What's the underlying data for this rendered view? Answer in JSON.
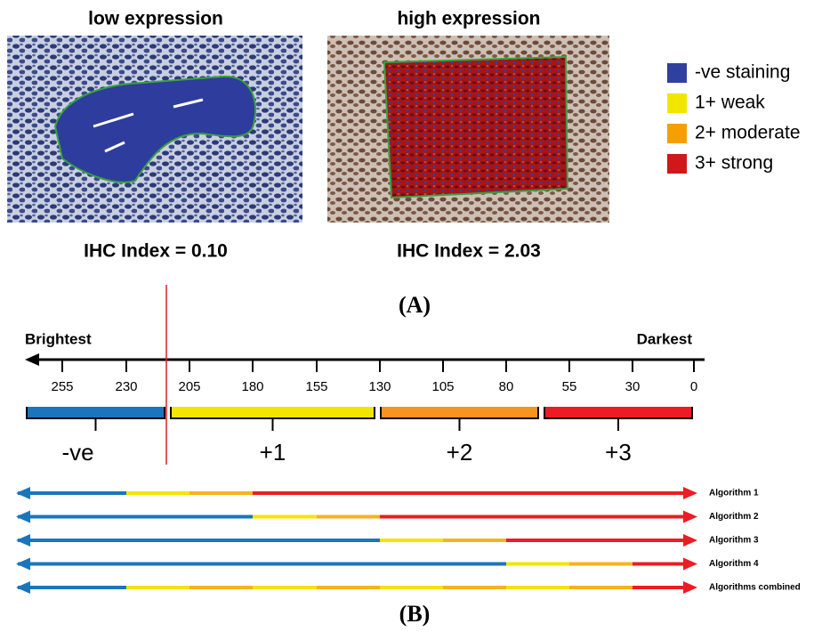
{
  "panel_a": {
    "images": [
      {
        "title": "low expression",
        "caption": "IHC Index = 0.10"
      },
      {
        "title": "high expression",
        "caption": "IHC Index = 2.03"
      }
    ],
    "legend": [
      "-ve staining",
      "1+ weak",
      "2+ moderate",
      "3+ strong"
    ],
    "label": "(A)"
  },
  "panel_b": {
    "left_label": "Brightest",
    "right_label": "Darkest",
    "ticks": [
      "255",
      "230",
      "205",
      "180",
      "155",
      "130",
      "105",
      "80",
      "55",
      "30",
      "0"
    ],
    "bins": [
      "-ve",
      "+1",
      "+2",
      "+3"
    ],
    "algorithms": [
      "Algorithm 1",
      "Algorithm 2",
      "Algorithm 3",
      "Algorithm 4",
      "Algorithms combined"
    ],
    "label": "(B)"
  }
}
